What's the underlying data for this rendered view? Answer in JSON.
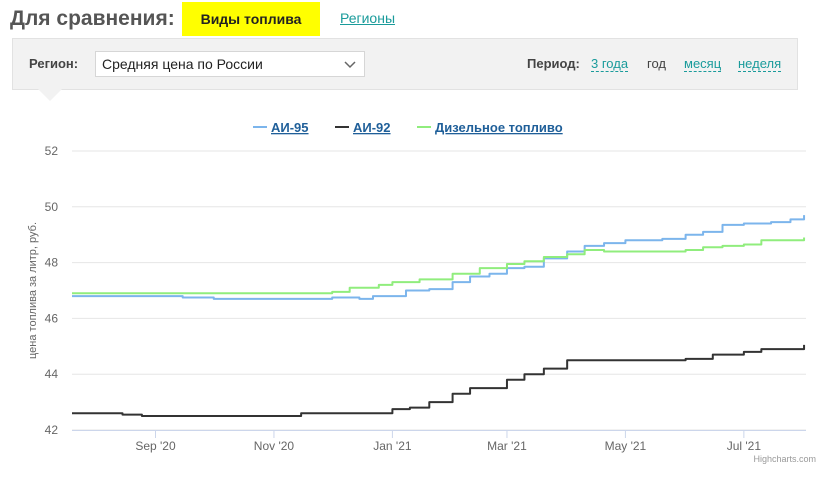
{
  "header": {
    "compare_label": "Для сравнения:",
    "tab_fuel": "Виды топлива",
    "tab_regions": "Регионы"
  },
  "filters": {
    "region_label": "Регион:",
    "region_value": "Средняя цена по России",
    "period_label": "Период:",
    "periods": [
      "3 года",
      "год",
      "месяц",
      "неделя"
    ],
    "active_period": "год"
  },
  "colors": {
    "accent": "#1a9b9b",
    "highlight": "#ffff00",
    "ai95": "#7cb5ec",
    "ai92": "#333333",
    "diesel": "#90ed7d"
  },
  "chart_data": {
    "type": "line",
    "title": "",
    "xlabel": "",
    "ylabel": "цена топлива за литр, руб.",
    "ylim": [
      42,
      52
    ],
    "yticks": [
      42,
      44,
      46,
      48,
      50,
      52
    ],
    "xlim": [
      "2020-07-20",
      "2021-08-02"
    ],
    "xticks": [
      {
        "date": "2020-09-01",
        "label": "Sep '20"
      },
      {
        "date": "2020-11-01",
        "label": "Nov '20"
      },
      {
        "date": "2021-01-01",
        "label": "Jan '21"
      },
      {
        "date": "2021-03-01",
        "label": "Mar '21"
      },
      {
        "date": "2021-05-01",
        "label": "May '21"
      },
      {
        "date": "2021-07-01",
        "label": "Jul '21"
      }
    ],
    "grid": true,
    "legend_position": "top",
    "credits": "Highcharts.com",
    "series": [
      {
        "name": "АИ-95",
        "color": "#7cb5ec",
        "points": [
          [
            "2020-07-20",
            46.8
          ],
          [
            "2020-08-10",
            46.8
          ],
          [
            "2020-09-15",
            46.75
          ],
          [
            "2020-10-01",
            46.7
          ],
          [
            "2020-11-01",
            46.7
          ],
          [
            "2020-12-01",
            46.75
          ],
          [
            "2020-12-10",
            46.75
          ],
          [
            "2020-12-15",
            46.7
          ],
          [
            "2020-12-22",
            46.8
          ],
          [
            "2021-01-01",
            46.8
          ],
          [
            "2021-01-08",
            47.0
          ],
          [
            "2021-01-20",
            47.05
          ],
          [
            "2021-02-01",
            47.3
          ],
          [
            "2021-02-10",
            47.5
          ],
          [
            "2021-02-20",
            47.6
          ],
          [
            "2021-03-01",
            47.8
          ],
          [
            "2021-03-10",
            47.85
          ],
          [
            "2021-03-20",
            48.15
          ],
          [
            "2021-04-01",
            48.4
          ],
          [
            "2021-04-10",
            48.6
          ],
          [
            "2021-04-20",
            48.7
          ],
          [
            "2021-05-01",
            48.8
          ],
          [
            "2021-05-20",
            48.85
          ],
          [
            "2021-06-01",
            49.0
          ],
          [
            "2021-06-10",
            49.1
          ],
          [
            "2021-06-20",
            49.35
          ],
          [
            "2021-07-01",
            49.4
          ],
          [
            "2021-07-15",
            49.45
          ],
          [
            "2021-07-25",
            49.55
          ],
          [
            "2021-08-01",
            49.7
          ]
        ]
      },
      {
        "name": "АИ-92",
        "color": "#333333",
        "points": [
          [
            "2020-07-20",
            42.6
          ],
          [
            "2020-08-15",
            42.55
          ],
          [
            "2020-08-25",
            42.5
          ],
          [
            "2020-10-01",
            42.5
          ],
          [
            "2020-11-01",
            42.5
          ],
          [
            "2020-11-15",
            42.6
          ],
          [
            "2020-12-01",
            42.6
          ],
          [
            "2020-12-20",
            42.6
          ],
          [
            "2021-01-01",
            42.75
          ],
          [
            "2021-01-10",
            42.8
          ],
          [
            "2021-01-20",
            43.0
          ],
          [
            "2021-02-01",
            43.3
          ],
          [
            "2021-02-10",
            43.5
          ],
          [
            "2021-02-20",
            43.5
          ],
          [
            "2021-03-01",
            43.8
          ],
          [
            "2021-03-10",
            44.0
          ],
          [
            "2021-03-20",
            44.2
          ],
          [
            "2021-04-01",
            44.5
          ],
          [
            "2021-05-01",
            44.5
          ],
          [
            "2021-06-01",
            44.55
          ],
          [
            "2021-06-15",
            44.7
          ],
          [
            "2021-07-01",
            44.8
          ],
          [
            "2021-07-10",
            44.9
          ],
          [
            "2021-07-25",
            44.9
          ],
          [
            "2021-08-01",
            45.05
          ]
        ]
      },
      {
        "name": "Дизельное топливо",
        "color": "#90ed7d",
        "points": [
          [
            "2020-07-20",
            46.9
          ],
          [
            "2020-09-01",
            46.9
          ],
          [
            "2020-11-01",
            46.9
          ],
          [
            "2020-12-01",
            46.95
          ],
          [
            "2020-12-10",
            47.1
          ],
          [
            "2020-12-25",
            47.2
          ],
          [
            "2021-01-01",
            47.3
          ],
          [
            "2021-01-15",
            47.4
          ],
          [
            "2021-02-01",
            47.6
          ],
          [
            "2021-02-15",
            47.8
          ],
          [
            "2021-03-01",
            47.95
          ],
          [
            "2021-03-10",
            48.05
          ],
          [
            "2021-03-20",
            48.2
          ],
          [
            "2021-04-01",
            48.3
          ],
          [
            "2021-04-10",
            48.45
          ],
          [
            "2021-04-20",
            48.4
          ],
          [
            "2021-05-01",
            48.4
          ],
          [
            "2021-06-01",
            48.45
          ],
          [
            "2021-06-10",
            48.55
          ],
          [
            "2021-06-20",
            48.6
          ],
          [
            "2021-07-01",
            48.65
          ],
          [
            "2021-07-10",
            48.8
          ],
          [
            "2021-07-25",
            48.8
          ],
          [
            "2021-08-01",
            48.9
          ]
        ]
      }
    ]
  }
}
